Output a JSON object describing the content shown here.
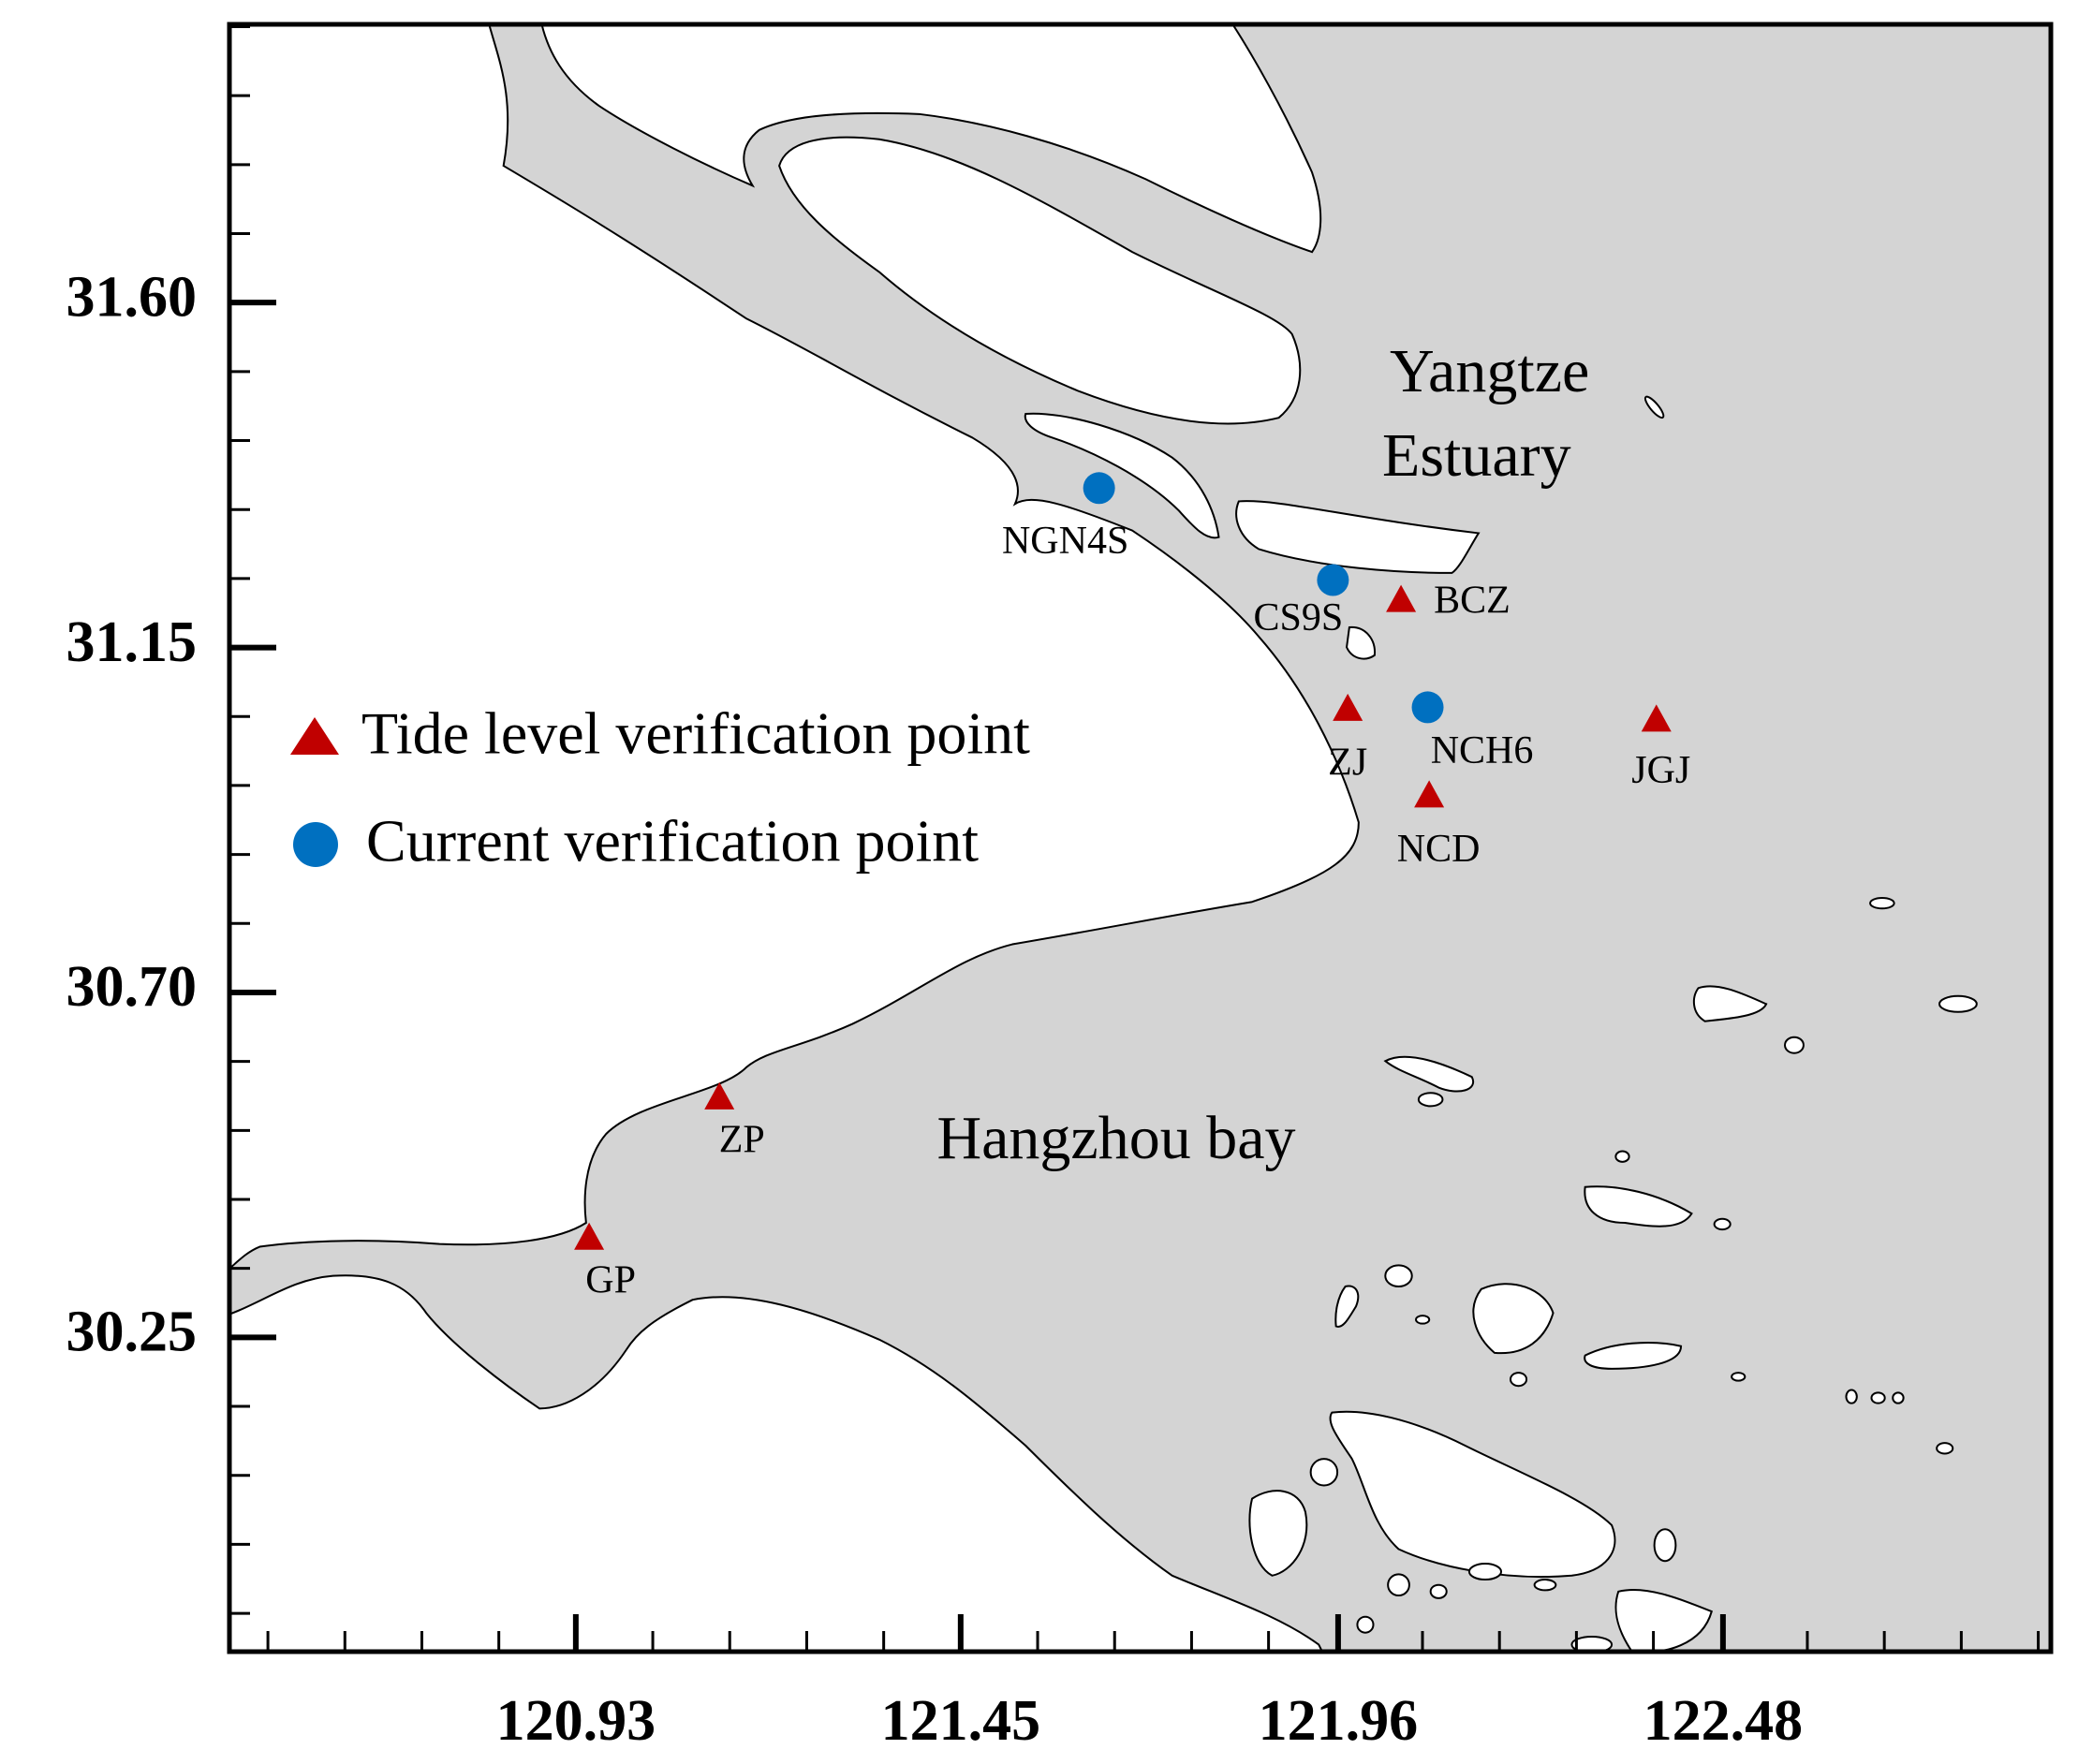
{
  "chart_data": {
    "type": "scatter",
    "xlim": [
      120.462,
      122.923
    ],
    "ylim": [
      29.84,
      31.963
    ],
    "xticks": [
      120.93,
      121.45,
      121.96,
      122.48
    ],
    "yticks": [
      {
        "value": 31.6,
        "label": "31.60"
      },
      31.15,
      {
        "value": 30.7,
        "label": "30.70"
      },
      30.25
    ],
    "annotations": [
      "Yangtze",
      "Estuary",
      "Hangzhou bay"
    ],
    "series": [
      {
        "name": "Tide level verification point",
        "color": "#c00000",
        "marker": "triangle",
        "labels": [
          "BCZ",
          "ZJ",
          "NCD",
          "JGJ",
          "ZP",
          "GP"
        ],
        "x": [
          122.045,
          121.973,
          122.083,
          122.39,
          121.124,
          120.948
        ],
        "values": [
          31.211,
          31.069,
          30.956,
          31.055,
          30.562,
          30.379
        ]
      },
      {
        "name": "Current verification point",
        "color": "#0070c0",
        "marker": "circle",
        "labels": [
          "NGN4S",
          "CS9S",
          "NCH6"
        ],
        "x": [
          121.637,
          121.953,
          122.081
        ],
        "values": [
          31.358,
          31.238,
          31.072
        ]
      }
    ]
  }
}
